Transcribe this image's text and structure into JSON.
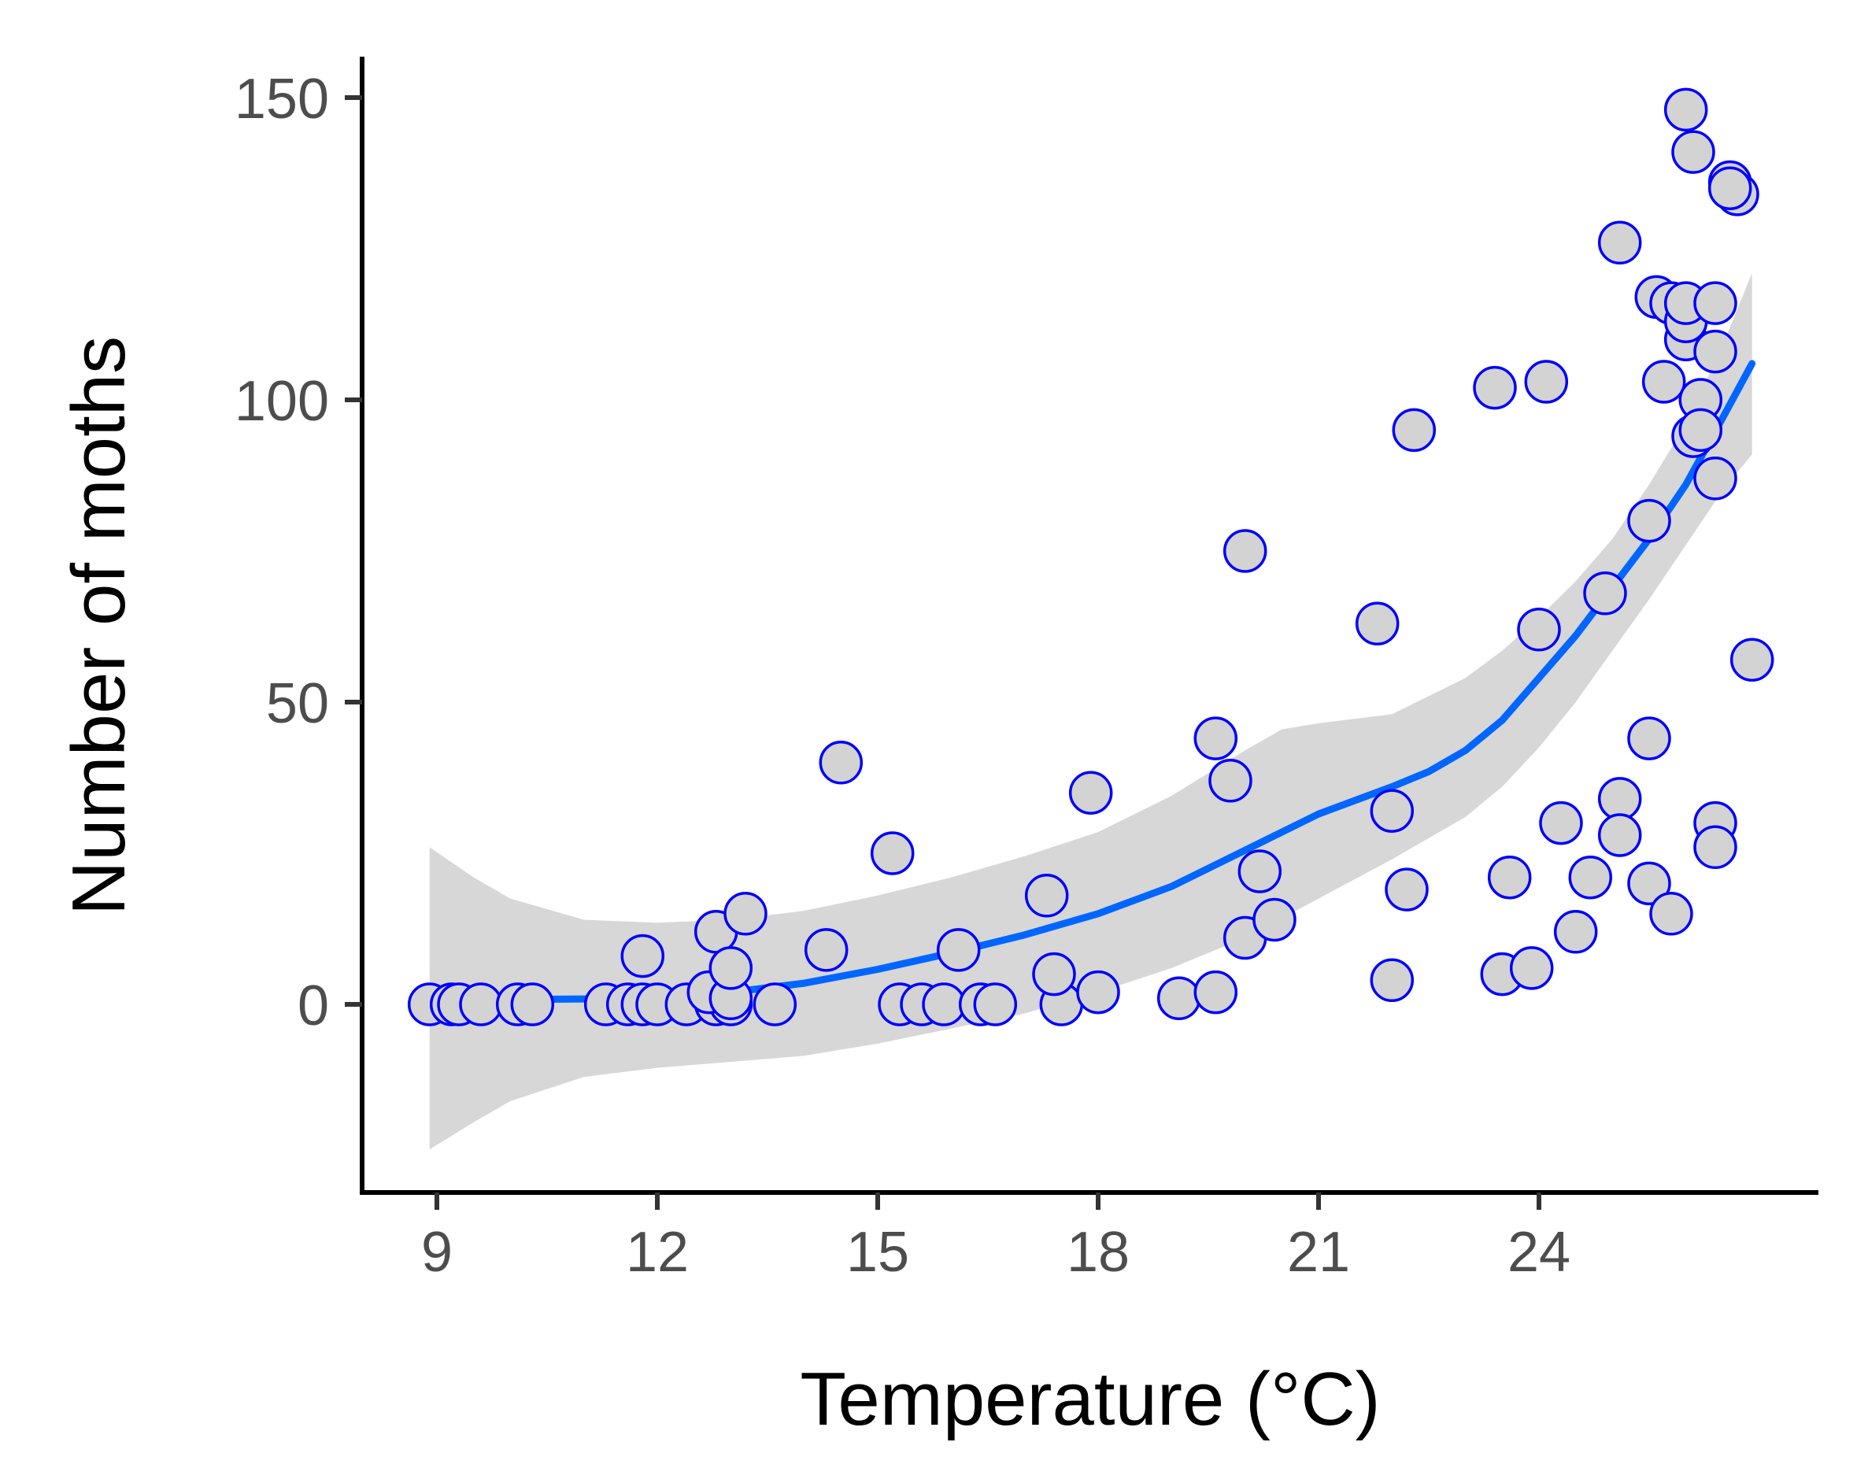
{
  "chart_data": {
    "type": "scatter",
    "title": "",
    "xlabel": "Temperature (°C)",
    "ylabel": "Number of moths",
    "xlim": [
      8.7,
      27.0
    ],
    "ylim": [
      -31,
      156
    ],
    "xticks": [
      9,
      12,
      15,
      18,
      21,
      24
    ],
    "yticks": [
      0,
      50,
      100,
      150
    ],
    "xtick_labels": [
      "9",
      "12",
      "15",
      "18",
      "21",
      "24"
    ],
    "ytick_labels": [
      "0",
      "50",
      "100",
      "150"
    ],
    "grid": false,
    "legend": null,
    "colors": {
      "point_fill": "#d3d3d3",
      "point_stroke": "#0000ff",
      "trend": "#0066ff",
      "band": "#bdbdbd",
      "axis": "#000000",
      "tick_text": "#4d4d4d"
    },
    "points": [
      {
        "x": 8.9,
        "y": 0
      },
      {
        "x": 9.2,
        "y": 0
      },
      {
        "x": 9.3,
        "y": 0
      },
      {
        "x": 9.6,
        "y": 0
      },
      {
        "x": 10.1,
        "y": 0
      },
      {
        "x": 10.3,
        "y": 0
      },
      {
        "x": 11.3,
        "y": 0
      },
      {
        "x": 11.6,
        "y": 0
      },
      {
        "x": 11.8,
        "y": 0
      },
      {
        "x": 12.0,
        "y": 0
      },
      {
        "x": 12.4,
        "y": 0
      },
      {
        "x": 12.8,
        "y": 0
      },
      {
        "x": 13.0,
        "y": 0
      },
      {
        "x": 13.6,
        "y": 0
      },
      {
        "x": 15.3,
        "y": 0
      },
      {
        "x": 15.6,
        "y": 0
      },
      {
        "x": 15.9,
        "y": 0
      },
      {
        "x": 16.4,
        "y": 0
      },
      {
        "x": 16.6,
        "y": 0
      },
      {
        "x": 17.5,
        "y": 0
      },
      {
        "x": 11.8,
        "y": 8
      },
      {
        "x": 12.7,
        "y": 2
      },
      {
        "x": 12.8,
        "y": 12
      },
      {
        "x": 13.0,
        "y": 1
      },
      {
        "x": 13.0,
        "y": 6
      },
      {
        "x": 13.2,
        "y": 15
      },
      {
        "x": 14.3,
        "y": 9
      },
      {
        "x": 14.5,
        "y": 40
      },
      {
        "x": 15.2,
        "y": 25
      },
      {
        "x": 16.1,
        "y": 9
      },
      {
        "x": 17.3,
        "y": 18
      },
      {
        "x": 17.4,
        "y": 5
      },
      {
        "x": 17.9,
        "y": 35
      },
      {
        "x": 18.0,
        "y": 2
      },
      {
        "x": 19.1,
        "y": 1
      },
      {
        "x": 19.6,
        "y": 2
      },
      {
        "x": 19.6,
        "y": 44
      },
      {
        "x": 19.8,
        "y": 37
      },
      {
        "x": 20.0,
        "y": 11
      },
      {
        "x": 20.0,
        "y": 75
      },
      {
        "x": 20.2,
        "y": 22
      },
      {
        "x": 20.4,
        "y": 14
      },
      {
        "x": 21.8,
        "y": 63
      },
      {
        "x": 22.0,
        "y": 32
      },
      {
        "x": 22.0,
        "y": 4
      },
      {
        "x": 22.2,
        "y": 19
      },
      {
        "x": 22.3,
        "y": 95
      },
      {
        "x": 23.4,
        "y": 102
      },
      {
        "x": 23.5,
        "y": 5
      },
      {
        "x": 23.6,
        "y": 21
      },
      {
        "x": 23.9,
        "y": 6
      },
      {
        "x": 24.0,
        "y": 62
      },
      {
        "x": 24.1,
        "y": 103
      },
      {
        "x": 24.3,
        "y": 30
      },
      {
        "x": 24.5,
        "y": 12
      },
      {
        "x": 24.7,
        "y": 21
      },
      {
        "x": 24.9,
        "y": 68
      },
      {
        "x": 25.1,
        "y": 126
      },
      {
        "x": 25.1,
        "y": 34
      },
      {
        "x": 25.1,
        "y": 28
      },
      {
        "x": 25.5,
        "y": 80
      },
      {
        "x": 25.5,
        "y": 44
      },
      {
        "x": 25.5,
        "y": 20
      },
      {
        "x": 25.6,
        "y": 117
      },
      {
        "x": 25.7,
        "y": 103
      },
      {
        "x": 25.8,
        "y": 116
      },
      {
        "x": 25.8,
        "y": 15
      },
      {
        "x": 26.0,
        "y": 110
      },
      {
        "x": 26.0,
        "y": 113
      },
      {
        "x": 26.0,
        "y": 116
      },
      {
        "x": 26.0,
        "y": 148
      },
      {
        "x": 26.1,
        "y": 94
      },
      {
        "x": 26.1,
        "y": 141
      },
      {
        "x": 26.2,
        "y": 100
      },
      {
        "x": 26.2,
        "y": 95
      },
      {
        "x": 26.4,
        "y": 116
      },
      {
        "x": 26.4,
        "y": 108
      },
      {
        "x": 26.4,
        "y": 87
      },
      {
        "x": 26.4,
        "y": 30
      },
      {
        "x": 26.4,
        "y": 26
      },
      {
        "x": 26.6,
        "y": 136
      },
      {
        "x": 26.7,
        "y": 134
      },
      {
        "x": 26.6,
        "y": 135
      },
      {
        "x": 26.9,
        "y": 57
      }
    ],
    "trend": [
      {
        "x": 8.9,
        "y": 1.0
      },
      {
        "x": 10.0,
        "y": 0.8
      },
      {
        "x": 11.0,
        "y": 0.9
      },
      {
        "x": 12.0,
        "y": 1.2
      },
      {
        "x": 13.0,
        "y": 2.0
      },
      {
        "x": 14.0,
        "y": 3.5
      },
      {
        "x": 15.0,
        "y": 5.8
      },
      {
        "x": 16.0,
        "y": 8.5
      },
      {
        "x": 17.0,
        "y": 11.5
      },
      {
        "x": 18.0,
        "y": 15.0
      },
      {
        "x": 19.0,
        "y": 19.5
      },
      {
        "x": 20.0,
        "y": 25.5
      },
      {
        "x": 21.0,
        "y": 31.5
      },
      {
        "x": 22.0,
        "y": 36.0
      },
      {
        "x": 22.5,
        "y": 38.5
      },
      {
        "x": 23.0,
        "y": 42.0
      },
      {
        "x": 23.5,
        "y": 47.0
      },
      {
        "x": 24.0,
        "y": 54.0
      },
      {
        "x": 24.5,
        "y": 61.0
      },
      {
        "x": 25.0,
        "y": 69.0
      },
      {
        "x": 25.5,
        "y": 77.0
      },
      {
        "x": 26.0,
        "y": 86.0
      },
      {
        "x": 26.5,
        "y": 97.0
      },
      {
        "x": 26.9,
        "y": 106.0
      }
    ],
    "band_upper": [
      {
        "x": 8.9,
        "y": 26.0
      },
      {
        "x": 9.5,
        "y": 21.0
      },
      {
        "x": 10.0,
        "y": 17.5
      },
      {
        "x": 11.0,
        "y": 14.0
      },
      {
        "x": 12.0,
        "y": 13.5
      },
      {
        "x": 13.0,
        "y": 14.0
      },
      {
        "x": 14.0,
        "y": 15.5
      },
      {
        "x": 15.0,
        "y": 18.0
      },
      {
        "x": 16.0,
        "y": 21.0
      },
      {
        "x": 17.0,
        "y": 24.5
      },
      {
        "x": 18.0,
        "y": 28.5
      },
      {
        "x": 19.0,
        "y": 34.5
      },
      {
        "x": 20.0,
        "y": 42.0
      },
      {
        "x": 20.5,
        "y": 45.5
      },
      {
        "x": 21.0,
        "y": 46.5
      },
      {
        "x": 22.0,
        "y": 48.0
      },
      {
        "x": 23.0,
        "y": 54.0
      },
      {
        "x": 23.5,
        "y": 58.5
      },
      {
        "x": 24.0,
        "y": 64.0
      },
      {
        "x": 24.5,
        "y": 70.0
      },
      {
        "x": 25.0,
        "y": 77.0
      },
      {
        "x": 25.5,
        "y": 86.0
      },
      {
        "x": 26.0,
        "y": 96.0
      },
      {
        "x": 26.5,
        "y": 109.0
      },
      {
        "x": 26.9,
        "y": 121.0
      }
    ],
    "band_lower": [
      {
        "x": 8.9,
        "y": -24.0
      },
      {
        "x": 9.5,
        "y": -19.5
      },
      {
        "x": 10.0,
        "y": -16.0
      },
      {
        "x": 11.0,
        "y": -12.0
      },
      {
        "x": 12.0,
        "y": -10.5
      },
      {
        "x": 13.0,
        "y": -9.5
      },
      {
        "x": 14.0,
        "y": -8.5
      },
      {
        "x": 15.0,
        "y": -6.5
      },
      {
        "x": 16.0,
        "y": -4.0
      },
      {
        "x": 17.0,
        "y": -1.5
      },
      {
        "x": 18.0,
        "y": 2.0
      },
      {
        "x": 19.0,
        "y": 6.0
      },
      {
        "x": 20.0,
        "y": 11.0
      },
      {
        "x": 21.0,
        "y": 17.5
      },
      {
        "x": 22.0,
        "y": 24.0
      },
      {
        "x": 23.0,
        "y": 31.0
      },
      {
        "x": 23.5,
        "y": 36.0
      },
      {
        "x": 24.0,
        "y": 42.5
      },
      {
        "x": 24.5,
        "y": 50.0
      },
      {
        "x": 25.0,
        "y": 58.5
      },
      {
        "x": 25.5,
        "y": 67.0
      },
      {
        "x": 26.0,
        "y": 76.0
      },
      {
        "x": 26.5,
        "y": 85.0
      },
      {
        "x": 26.9,
        "y": 91.0
      }
    ]
  }
}
